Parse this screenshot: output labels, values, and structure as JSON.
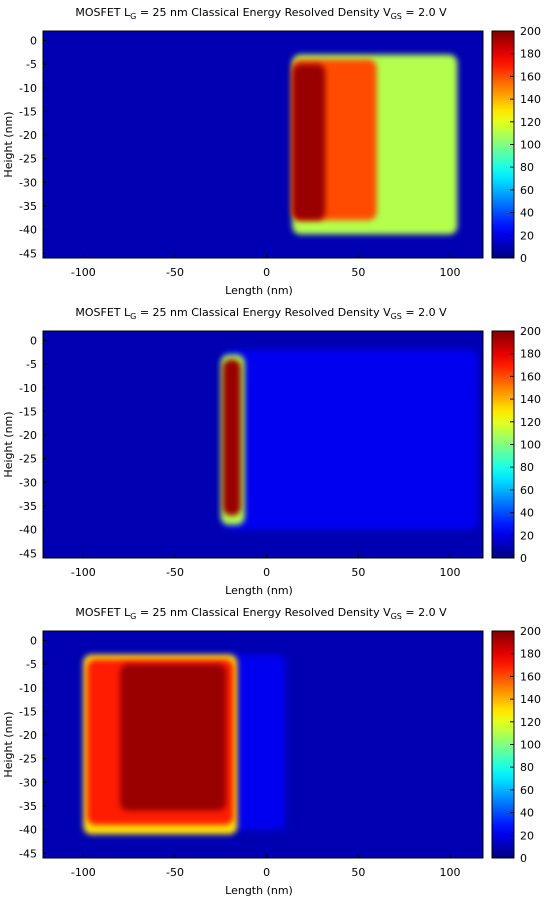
{
  "chart_data": [
    {
      "type": "heatmap",
      "title_parts": {
        "a": "MOSFET L",
        "a_sub": "G",
        "b": " = 25 nm Classical Energy Resolved Density V",
        "b_sub": "GS",
        "c": " = 2.0 V"
      },
      "xlabel": "Length (nm)",
      "ylabel": "Height (nm)",
      "xlim": [
        -122,
        118
      ],
      "ylim": [
        -46,
        2
      ],
      "xticks": [
        -100,
        -50,
        0,
        50,
        100
      ],
      "yticks": [
        0,
        -5,
        -10,
        -15,
        -20,
        -25,
        -30,
        -35,
        -40,
        -45
      ],
      "colorbar": {
        "min": 0,
        "max": 200,
        "ticks": [
          0,
          20,
          40,
          60,
          80,
          100,
          120,
          140,
          160,
          180,
          200
        ]
      },
      "background_value": 10,
      "regions": [
        {
          "x": [
            14,
            104
          ],
          "y": [
            -41,
            -3
          ],
          "value": 110
        },
        {
          "x": [
            14,
            60
          ],
          "y": [
            -38,
            -4
          ],
          "value": 160
        },
        {
          "x": [
            14,
            32
          ],
          "y": [
            -38,
            -5
          ],
          "value": 195
        }
      ]
    },
    {
      "type": "heatmap",
      "title_parts": {
        "a": "MOSFET L",
        "a_sub": "G",
        "b": " = 25 nm Classical Energy Resolved Density V",
        "b_sub": "GS",
        "c": " = 2.0 V"
      },
      "xlabel": "Length (nm)",
      "ylabel": "Height (nm)",
      "xlim": [
        -122,
        118
      ],
      "ylim": [
        -46,
        2
      ],
      "xticks": [
        -100,
        -50,
        0,
        50,
        100
      ],
      "yticks": [
        0,
        -5,
        -10,
        -15,
        -20,
        -25,
        -30,
        -35,
        -40,
        -45
      ],
      "colorbar": {
        "min": 0,
        "max": 200,
        "ticks": [
          0,
          20,
          40,
          60,
          80,
          100,
          120,
          140,
          160,
          180,
          200
        ]
      },
      "background_value": 10,
      "regions": [
        {
          "x": [
            -24,
            115
          ],
          "y": [
            -40,
            -2
          ],
          "value": 22
        },
        {
          "x": [
            -25,
            -12
          ],
          "y": [
            -39,
            -3
          ],
          "value": 110
        },
        {
          "x": [
            -24,
            -14
          ],
          "y": [
            -37,
            -4
          ],
          "value": 195
        }
      ]
    },
    {
      "type": "heatmap",
      "title_parts": {
        "a": "MOSFET L",
        "a_sub": "G",
        "b": " = 25 nm Classical Energy Resolved Density V",
        "b_sub": "GS",
        "c": " = 2.0 V"
      },
      "xlabel": "Length (nm)",
      "ylabel": "Height (nm)",
      "xlim": [
        -122,
        118
      ],
      "ylim": [
        -46,
        2
      ],
      "xticks": [
        -100,
        -50,
        0,
        50,
        100
      ],
      "yticks": [
        0,
        -5,
        -10,
        -15,
        -20,
        -25,
        -30,
        -35,
        -40,
        -45
      ],
      "colorbar": {
        "min": 0,
        "max": 200,
        "ticks": [
          0,
          20,
          40,
          60,
          80,
          100,
          120,
          140,
          160,
          180,
          200
        ]
      },
      "background_value": 10,
      "regions": [
        {
          "x": [
            -100,
            10
          ],
          "y": [
            -40,
            -3
          ],
          "value": 22
        },
        {
          "x": [
            -100,
            -16
          ],
          "y": [
            -41,
            -3
          ],
          "value": 130
        },
        {
          "x": [
            -98,
            -18
          ],
          "y": [
            -39,
            -4
          ],
          "value": 170
        },
        {
          "x": [
            -80,
            -22
          ],
          "y": [
            -36,
            -5
          ],
          "value": 195
        }
      ]
    }
  ]
}
